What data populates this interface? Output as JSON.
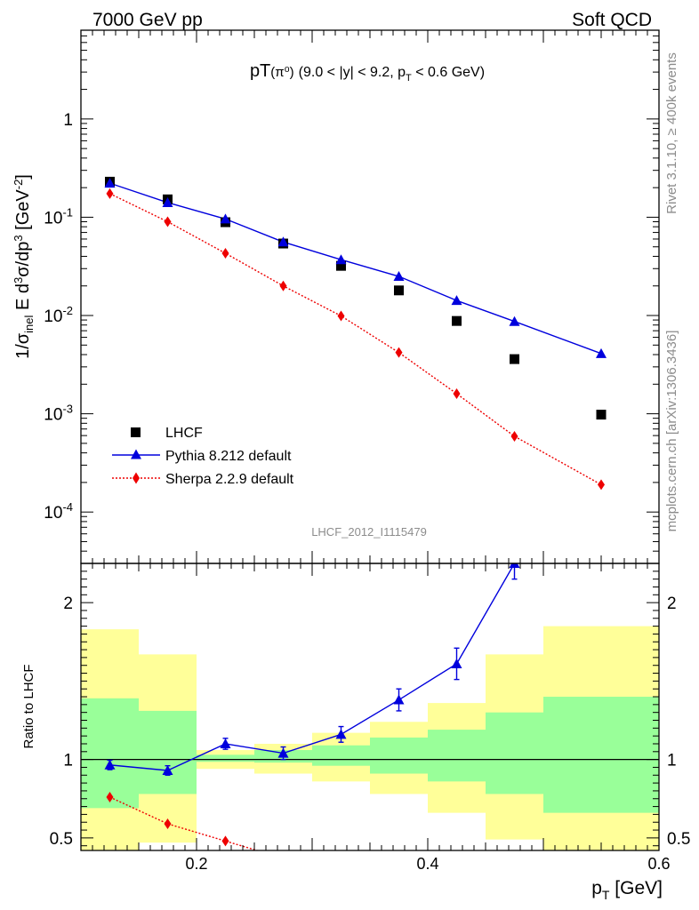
{
  "header": {
    "left": "7000 GeV pp",
    "right": "Soft QCD"
  },
  "plot_title": {
    "main": "pT",
    "sub": "(9.0 < |y| < 9.2, p",
    "sub_index": "T",
    "sub_tail": " < 0.6 GeV)",
    "particle": "(π⁰)"
  },
  "side_labels": {
    "rivet": "Rivet 3.1.10, ≥ 400k events",
    "mcplots": "mcplots.cern.ch [arXiv:1306.3436]"
  },
  "watermark": "LHCF_2012_I1115479",
  "axes": {
    "ylabel_main": "1/σ_inel E d³σ/dp³ [GeV⁻²]",
    "ylabel_ratio": "Ratio to LHCF",
    "xlabel": "p_T [GeV]"
  },
  "colors": {
    "data": "#000000",
    "pythia": "#0000dd",
    "sherpa": "#ee0000",
    "band_inner": "#99ff99",
    "band_outer": "#ffff99"
  },
  "chart_data": [
    {
      "type": "scatter",
      "title": "pT(π⁰) (9.0 < |y| < 9.2, p_T < 0.6 GeV)",
      "xlabel": "",
      "ylabel": "1/σ_inel E d³σ/dp³ [GeV⁻²]",
      "yscale": "log",
      "xlim": [
        0.1,
        0.6
      ],
      "ylim": [
        3e-05,
        8
      ],
      "x_ticks": [
        0.2,
        0.4,
        0.6
      ],
      "y_ticks": [
        {
          "value": 1,
          "label": "1"
        },
        {
          "value": 0.1,
          "label": "10^-1"
        },
        {
          "value": 0.01,
          "label": "10^-2"
        },
        {
          "value": 0.001,
          "label": "10^-3"
        },
        {
          "value": 0.0001,
          "label": "10^-4"
        }
      ],
      "legend_position": "bottom-left",
      "series": [
        {
          "name": "LHCF",
          "marker": "square",
          "x": [
            0.125,
            0.175,
            0.225,
            0.275,
            0.325,
            0.375,
            0.425,
            0.475,
            0.55
          ],
          "y": [
            0.23,
            0.152,
            0.089,
            0.054,
            0.032,
            0.018,
            0.0088,
            0.0036,
            0.00098
          ]
        },
        {
          "name": "Pythia 8.212 default",
          "marker": "triangle",
          "x": [
            0.125,
            0.175,
            0.225,
            0.275,
            0.325,
            0.375,
            0.425,
            0.475,
            0.55
          ],
          "y": [
            0.222,
            0.141,
            0.096,
            0.056,
            0.037,
            0.025,
            0.0142,
            0.0087,
            0.0041
          ]
        },
        {
          "name": "Sherpa 2.2.9 default",
          "marker": "diamond",
          "x": [
            0.125,
            0.175,
            0.225,
            0.275,
            0.325,
            0.375,
            0.425,
            0.475,
            0.55
          ],
          "y": [
            0.174,
            0.09,
            0.043,
            0.02,
            0.0099,
            0.0042,
            0.0016,
            0.00059,
            0.00019
          ]
        }
      ]
    },
    {
      "type": "line",
      "ylabel": "Ratio to LHCF",
      "xlabel": "p_T [GeV]",
      "xlim": [
        0.1,
        0.6
      ],
      "ylim": [
        0.42,
        2.25
      ],
      "x_ticks": [
        0.2,
        0.4,
        0.6
      ],
      "y_ticks": [
        {
          "value": 0.5,
          "label": "0.5"
        },
        {
          "value": 1,
          "label": "1"
        },
        {
          "value": 2,
          "label": "2"
        }
      ],
      "bands": {
        "bin_edges": [
          0.1,
          0.15,
          0.2,
          0.25,
          0.3,
          0.35,
          0.4,
          0.45,
          0.5,
          0.6
        ],
        "inner_low": [
          0.69,
          0.78,
          0.985,
          0.98,
          0.96,
          0.91,
          0.86,
          0.78,
          0.66
        ],
        "inner_high": [
          1.39,
          1.31,
          1.03,
          1.06,
          1.09,
          1.14,
          1.19,
          1.3,
          1.4
        ],
        "outer_low": [
          0.42,
          0.47,
          0.94,
          0.91,
          0.86,
          0.78,
          0.66,
          0.49,
          0.42
        ],
        "outer_high": [
          1.83,
          1.67,
          1.06,
          1.1,
          1.17,
          1.24,
          1.36,
          1.67,
          1.85
        ]
      },
      "series": [
        {
          "name": "Pythia 8.212 default",
          "x": [
            0.125,
            0.175,
            0.225,
            0.275,
            0.325,
            0.375,
            0.425,
            0.475
          ],
          "y": [
            0.965,
            0.93,
            1.1,
            1.04,
            1.16,
            1.38,
            1.61,
            2.25
          ],
          "err": [
            0.03,
            0.03,
            0.035,
            0.04,
            0.05,
            0.07,
            0.1,
            0.1
          ]
        },
        {
          "name": "Sherpa 2.2.9 default",
          "x": [
            0.125,
            0.175,
            0.225,
            0.275
          ],
          "y": [
            0.76,
            0.59,
            0.48,
            0.37
          ]
        }
      ]
    }
  ]
}
